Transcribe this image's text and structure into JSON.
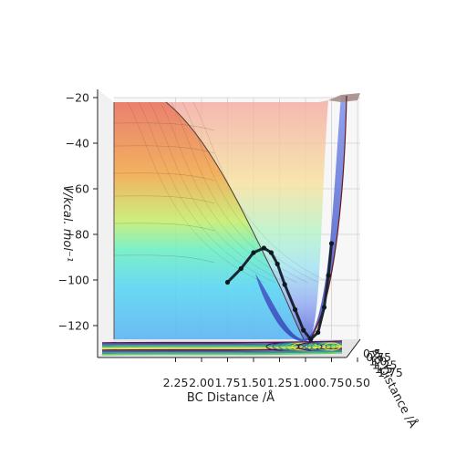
{
  "chart_data": {
    "type": "surface3d",
    "title": "",
    "xlabel": "BC Distance /Å",
    "ylabel": "V/kcal. mol⁻¹",
    "zlabel": "AB Distance /Å",
    "x_ticks": [
      "2.25",
      "2.00",
      "1.75",
      "1.50",
      "1.25",
      "1.00",
      "0.75",
      "0.50"
    ],
    "y_ticks": [
      "−20",
      "−40",
      "−60",
      "−80",
      "−100",
      "−120"
    ],
    "z_ticks": [
      "0.5",
      "0.75",
      "1.0",
      "1.25",
      "1.5",
      "1.75"
    ],
    "x_range": [
      0.5,
      2.4
    ],
    "y_range": [
      -135,
      -20
    ],
    "surface_colormap": "jet-like (red high, blue low)",
    "trajectory_color": "#1a2530",
    "contour_colormap": "viridis",
    "trajectory": [
      {
        "x": 1.75,
        "v": -101
      },
      {
        "x": 1.62,
        "v": -95
      },
      {
        "x": 1.5,
        "v": -88
      },
      {
        "x": 1.4,
        "v": -86
      },
      {
        "x": 1.33,
        "v": -88
      },
      {
        "x": 1.27,
        "v": -93
      },
      {
        "x": 1.2,
        "v": -102
      },
      {
        "x": 1.1,
        "v": -113
      },
      {
        "x": 1.02,
        "v": -122
      },
      {
        "x": 0.95,
        "v": -126
      },
      {
        "x": 0.88,
        "v": -123
      },
      {
        "x": 0.82,
        "v": -112
      },
      {
        "x": 0.78,
        "v": -98
      },
      {
        "x": 0.75,
        "v": -84
      }
    ]
  }
}
